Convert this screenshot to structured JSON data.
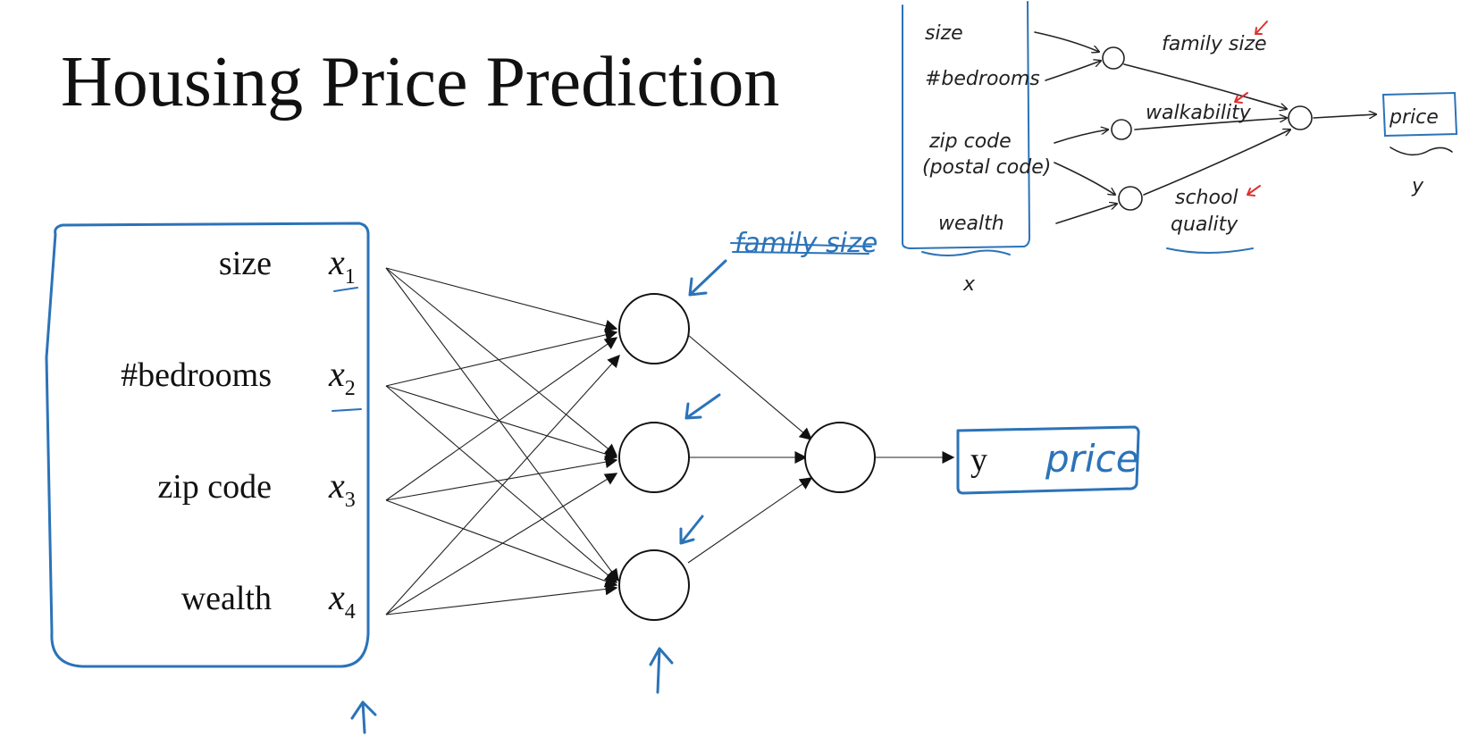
{
  "title": "Housing Price Prediction",
  "features": [
    {
      "label": "size",
      "var": "x",
      "sub": "1"
    },
    {
      "label": "#bedrooms",
      "var": "x",
      "sub": "2"
    },
    {
      "label": "zip code",
      "var": "x",
      "sub": "3"
    },
    {
      "label": "wealth",
      "var": "x",
      "sub": "4"
    }
  ],
  "output": {
    "symbol": "y",
    "handwritten": "price"
  },
  "annotation_crossed": "family size",
  "sketch": {
    "inputs": [
      "size",
      "#bedrooms",
      "zip code",
      "(postal code)",
      "wealth"
    ],
    "hidden_labels": [
      "family size",
      "walkability",
      "school",
      "quality"
    ],
    "output": "price",
    "x_label": "x",
    "y_label": "y"
  },
  "colors": {
    "ink": "#2b73b8",
    "highlight": "#e03030"
  }
}
